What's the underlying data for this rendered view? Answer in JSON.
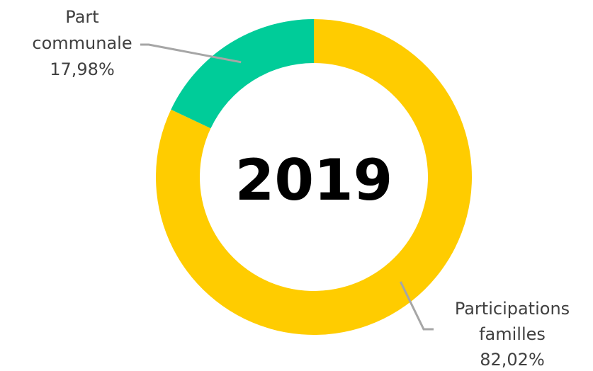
{
  "chart_data": {
    "type": "pie",
    "variant": "donut",
    "center_label": "2019",
    "slices": [
      {
        "name_lines": [
          "Participations",
          "familles"
        ],
        "value": 82.02,
        "label": "82,02%",
        "color": "#FFCC00"
      },
      {
        "name_lines": [
          "Part",
          "communale"
        ],
        "value": 17.98,
        "label": "17,98%",
        "color": "#00CC99"
      }
    ],
    "leader_line_color": "#A6A6A6"
  }
}
